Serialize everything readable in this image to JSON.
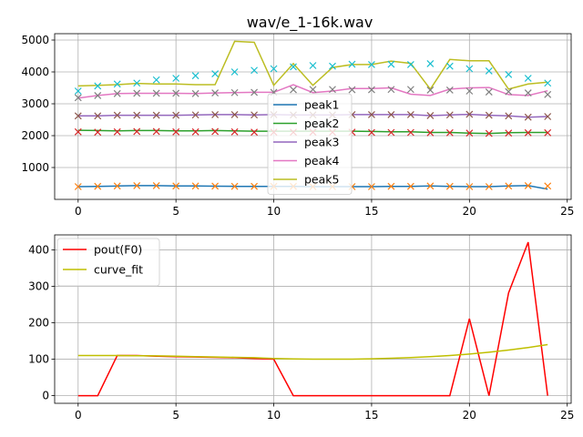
{
  "colors": {
    "peak1": "#1f77b4",
    "peak2": "#2ca02c",
    "peak3": "#9467bd",
    "peak4": "#e377c2",
    "peak5": "#bcbd22",
    "marker_peak1": "#ff7f0e",
    "marker_peak2": "#d62728",
    "marker_peak3": "#8c564b",
    "marker_peak4": "#7f7f7f",
    "marker_peak5": "#17becf",
    "pout": "#ff0000",
    "curve_fit": "#bfbf00",
    "grid": "#b0b0b0"
  },
  "chart_data": [
    {
      "type": "line",
      "title": "wav/e_1-16k.wav",
      "xlabel": "",
      "ylabel": "",
      "xlim": [
        -1.2,
        25.2
      ],
      "ylim": [
        0,
        5200
      ],
      "xticks": [
        0,
        5,
        10,
        15,
        20,
        25
      ],
      "yticks": [
        1000,
        2000,
        3000,
        4000,
        5000
      ],
      "grid": true,
      "legend_position": "center",
      "x": [
        0,
        1,
        2,
        3,
        4,
        5,
        6,
        7,
        8,
        9,
        10,
        11,
        12,
        13,
        14,
        15,
        16,
        17,
        18,
        19,
        20,
        21,
        22,
        23,
        24
      ],
      "series": [
        {
          "name": "peak1",
          "color_key": "peak1",
          "values": [
            400,
            410,
            420,
            430,
            430,
            420,
            420,
            415,
            410,
            410,
            410,
            410,
            400,
            400,
            400,
            400,
            410,
            410,
            420,
            410,
            400,
            400,
            420,
            430,
            320
          ]
        },
        {
          "name": "peak2",
          "color_key": "peak2",
          "values": [
            2170,
            2160,
            2150,
            2160,
            2160,
            2150,
            2150,
            2160,
            2150,
            2140,
            2140,
            2140,
            2140,
            2140,
            2140,
            2130,
            2120,
            2120,
            2100,
            2100,
            2080,
            2070,
            2090,
            2100,
            2100
          ]
        },
        {
          "name": "peak3",
          "color_key": "peak3",
          "values": [
            2620,
            2620,
            2640,
            2640,
            2640,
            2640,
            2650,
            2660,
            2660,
            2650,
            2660,
            2650,
            2650,
            2650,
            2660,
            2660,
            2660,
            2660,
            2630,
            2650,
            2670,
            2640,
            2620,
            2580,
            2600
          ]
        },
        {
          "name": "peak4",
          "color_key": "peak4",
          "values": [
            3180,
            3260,
            3320,
            3330,
            3330,
            3330,
            3320,
            3340,
            3350,
            3360,
            3360,
            3600,
            3350,
            3400,
            3480,
            3480,
            3500,
            3300,
            3260,
            3460,
            3500,
            3510,
            3290,
            3260,
            3410
          ]
        },
        {
          "name": "peak5",
          "color_key": "peak5",
          "values": [
            3560,
            3580,
            3600,
            3640,
            3620,
            3620,
            3600,
            3600,
            4960,
            4930,
            3580,
            4260,
            3580,
            4140,
            4230,
            4230,
            4340,
            4270,
            3460,
            4390,
            4350,
            4350,
            3460,
            3620,
            3680
          ]
        }
      ],
      "markers": [
        {
          "name": "peak1",
          "color_key": "marker_peak1",
          "values": [
            400,
            410,
            420,
            430,
            430,
            420,
            420,
            415,
            410,
            410,
            410,
            410,
            400,
            400,
            400,
            400,
            410,
            410,
            420,
            410,
            400,
            400,
            420,
            430,
            420
          ]
        },
        {
          "name": "peak2",
          "color_key": "marker_peak2",
          "values": [
            2120,
            2110,
            2120,
            2130,
            2130,
            2120,
            2120,
            2130,
            2120,
            2110,
            2110,
            2110,
            2110,
            2110,
            2110,
            2100,
            2100,
            2100,
            2090,
            2090,
            2080,
            2070,
            2080,
            2090,
            2090
          ]
        },
        {
          "name": "peak3",
          "color_key": "marker_peak3",
          "values": [
            2620,
            2620,
            2640,
            2640,
            2640,
            2640,
            2650,
            2660,
            2660,
            2650,
            2660,
            2650,
            2650,
            2650,
            2660,
            2660,
            2660,
            2660,
            2630,
            2650,
            2670,
            2640,
            2620,
            2580,
            2600
          ]
        },
        {
          "name": "peak4",
          "color_key": "marker_peak4",
          "values": [
            3190,
            3260,
            3320,
            3330,
            3330,
            3330,
            3320,
            3340,
            3350,
            3360,
            3360,
            3440,
            3450,
            3450,
            3440,
            3440,
            3450,
            3450,
            3430,
            3430,
            3400,
            3370,
            3380,
            3340,
            3290
          ]
        },
        {
          "name": "peak5",
          "color_key": "marker_peak5",
          "values": [
            3400,
            3560,
            3620,
            3650,
            3750,
            3800,
            3880,
            3940,
            4000,
            4050,
            4100,
            4160,
            4200,
            4180,
            4240,
            4230,
            4240,
            4230,
            4260,
            4180,
            4100,
            4030,
            3920,
            3800,
            3650
          ]
        }
      ]
    },
    {
      "type": "line",
      "title": "",
      "xlabel": "",
      "ylabel": "",
      "xlim": [
        -1.2,
        25.2
      ],
      "ylim": [
        -21,
        441
      ],
      "xticks": [
        0,
        5,
        10,
        15,
        20,
        25
      ],
      "yticks": [
        0,
        100,
        200,
        300,
        400
      ],
      "grid": true,
      "legend_position": "upper left",
      "x": [
        0,
        1,
        2,
        3,
        4,
        5,
        6,
        7,
        8,
        9,
        10,
        11,
        12,
        13,
        14,
        15,
        16,
        17,
        18,
        19,
        20,
        21,
        22,
        23,
        24
      ],
      "series": [
        {
          "name": "pout(F0)",
          "color_key": "pout",
          "values": [
            0,
            0,
            110,
            110,
            108,
            107,
            106,
            105,
            104,
            102,
            100,
            0,
            0,
            0,
            0,
            0,
            0,
            0,
            0,
            0,
            211,
            0,
            282,
            421,
            0
          ]
        },
        {
          "name": "curve_fit",
          "color_key": "curve_fit",
          "values": [
            110,
            110,
            110,
            109.5,
            109,
            108,
            107,
            106,
            105,
            104,
            102,
            100.8,
            100.2,
            100,
            100.2,
            101,
            102.5,
            104.5,
            107,
            110,
            114,
            119,
            125,
            132,
            140
          ]
        }
      ]
    }
  ]
}
